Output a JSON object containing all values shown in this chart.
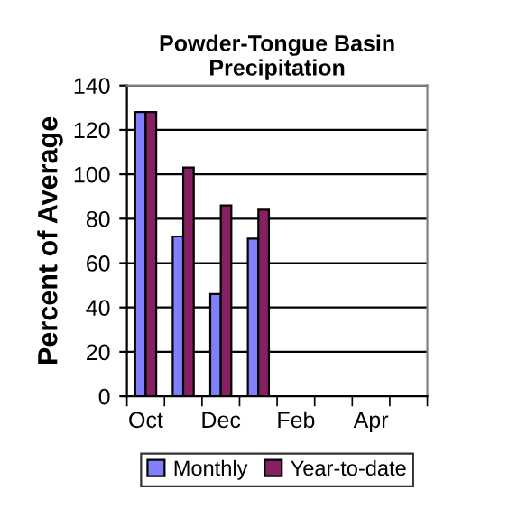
{
  "chart_data": {
    "type": "bar",
    "title": "Powder-Tongue Basin\nPrecipitation",
    "ylabel": "Percent of Average",
    "categories": [
      "Oct",
      null,
      "Dec",
      null,
      "Feb",
      null,
      "Apr",
      null
    ],
    "series": [
      {
        "name": "Monthly",
        "color": "#8080ff",
        "values": [
          128,
          72,
          46,
          71,
          null,
          null,
          null,
          null
        ]
      },
      {
        "name": "Year-to-date",
        "color": "#862063",
        "values": [
          128,
          103,
          86,
          84,
          null,
          null,
          null,
          null
        ]
      }
    ],
    "ylim": [
      0,
      140
    ],
    "yticks": [
      0,
      20,
      40,
      60,
      80,
      100,
      120,
      140
    ],
    "grid": "y",
    "legend": "bottom"
  }
}
